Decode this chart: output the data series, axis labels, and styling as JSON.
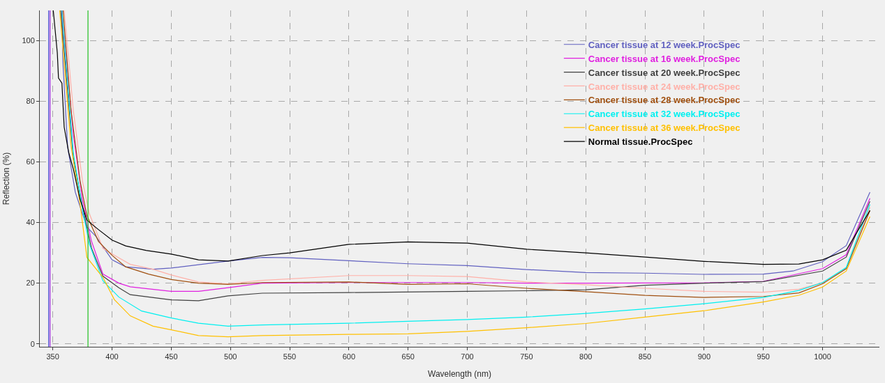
{
  "chart_data": {
    "type": "line",
    "xlabel": "Wavelength (nm)",
    "ylabel": "Reflection (%)",
    "xlim": [
      339,
      1048
    ],
    "xticks": [
      350,
      400,
      450,
      500,
      550,
      600,
      650,
      700,
      750,
      800,
      850,
      900,
      950,
      1000
    ],
    "ylim": [
      -1,
      110
    ],
    "yticks": [
      0,
      20,
      40,
      60,
      80,
      100
    ],
    "grid": true,
    "legend": "top right",
    "marker": "none",
    "line_style": "solid",
    "ref_lines": [
      {
        "axis": "x",
        "value": 346.5,
        "color": "#4040d0"
      },
      {
        "axis": "x",
        "value": 347.7,
        "color": "#a030e0"
      },
      {
        "axis": "x",
        "value": 379.7,
        "color": "#20c020"
      }
    ],
    "series": [
      {
        "name": "Cancer tissue at 12 week.ProcSpec",
        "color": "#6060c0",
        "x": [
          357.7,
          358.5,
          362.5,
          369,
          378.8,
          386.5,
          400,
          411.5,
          434.6,
          450,
          498,
          527,
          550,
          600,
          650,
          700,
          750,
          800,
          850,
          900,
          950,
          975,
          1000,
          1020,
          1040
        ],
        "values": [
          110,
          93,
          65,
          50,
          38.5,
          35.4,
          27.7,
          25.4,
          24.6,
          25,
          27.3,
          28.5,
          28.4,
          27.4,
          26.4,
          25.8,
          24.5,
          23.5,
          23.3,
          22.9,
          23,
          24,
          27.1,
          32.4,
          50
        ]
      },
      {
        "name": "Cancer tissue at 16 week.ProcSpec",
        "color": "#e020e0",
        "x": [
          357.7,
          367.3,
          375,
          382.7,
          392.3,
          405.8,
          415.4,
          450,
          473,
          498,
          527,
          600,
          700,
          750,
          800,
          900,
          950,
          1000,
          1020,
          1040
        ],
        "values": [
          110,
          69,
          47.7,
          33.8,
          23,
          20,
          18.8,
          17.3,
          17.3,
          18.5,
          20,
          20.2,
          20.2,
          20,
          20,
          20.1,
          20.6,
          24.8,
          29.4,
          48
        ]
      },
      {
        "name": "Cancer tissue at 20 week.ProcSpec",
        "color": "#404040",
        "x": [
          356.7,
          367.3,
          375,
          382.7,
          392.3,
          405.8,
          415.4,
          450,
          473,
          498,
          527,
          600,
          700,
          750,
          800,
          850,
          900,
          950,
          1000,
          1020,
          1040
        ],
        "values": [
          110,
          61.5,
          45.4,
          31.5,
          22.3,
          18.5,
          16.2,
          14.5,
          14.2,
          15.8,
          16.7,
          16.9,
          17.3,
          17.5,
          17.8,
          19.3,
          20,
          20.5,
          24,
          28.6,
          47
        ]
      },
      {
        "name": "Cancer tissue at 24 week.ProcSpec",
        "color": "#ffb0a8",
        "x": [
          359.6,
          367.3,
          375,
          380.8,
          392.3,
          401.9,
          415.4,
          434.6,
          450,
          473,
          498,
          527,
          600,
          650,
          700,
          750,
          800,
          850,
          900,
          950,
          980,
          1000,
          1020,
          1040
        ],
        "values": [
          110,
          77,
          53.8,
          43,
          31.5,
          29.2,
          26.2,
          24.6,
          22.7,
          20.4,
          19.8,
          20.9,
          22.5,
          22.5,
          22.2,
          20.4,
          19.5,
          18.3,
          17.3,
          17,
          18,
          20.2,
          24.8,
          45
        ]
      },
      {
        "name": "Cancer tissue at 28 week.ProcSpec",
        "color": "#a05010",
        "x": [
          358.7,
          365.4,
          373,
          378.8,
          388.5,
          400,
          411.5,
          430.8,
          450,
          473,
          498,
          527,
          600,
          650,
          700,
          750,
          800,
          850,
          900,
          950,
          980,
          1000,
          1020,
          1040
        ],
        "values": [
          110,
          77,
          53.8,
          42.3,
          33.8,
          29.2,
          25.4,
          23,
          21.2,
          20,
          19.6,
          20.2,
          20.4,
          19.6,
          19.8,
          18.3,
          17.2,
          16,
          15.3,
          15.6,
          16.8,
          19.8,
          24.8,
          44
        ]
      },
      {
        "name": "Cancer tissue at 32 week.ProcSpec",
        "color": "#00f0f0",
        "x": [
          357.7,
          367.3,
          375,
          380.8,
          392.3,
          405.8,
          425,
          450,
          473,
          498,
          527,
          600,
          650,
          700,
          750,
          800,
          850,
          900,
          950,
          980,
          1000,
          1020,
          1040
        ],
        "values": [
          110,
          63,
          44.6,
          33,
          20.8,
          15.4,
          10.8,
          8.5,
          6.8,
          5.8,
          6.2,
          6.8,
          7.4,
          8,
          8.8,
          10,
          11.5,
          13.2,
          15.3,
          17.6,
          20.2,
          25.2,
          46
        ]
      },
      {
        "name": "Cancer tissue at 36 week.ProcSpec",
        "color": "#ffc000",
        "x": [
          355.8,
          365.4,
          373,
          378.8,
          392.3,
          401.9,
          415.4,
          434.6,
          450,
          473,
          498,
          527,
          600,
          650,
          700,
          750,
          800,
          850,
          900,
          950,
          980,
          1000,
          1020,
          1040
        ],
        "values": [
          110,
          65.4,
          46.2,
          28.5,
          21.9,
          14.6,
          9.2,
          5.8,
          4.6,
          2.7,
          2.3,
          2.7,
          3.1,
          3.3,
          4.1,
          5.3,
          6.7,
          8.8,
          10.9,
          13.8,
          16,
          18.7,
          24,
          42
        ]
      },
      {
        "name": "Normal tissue.ProcSpec",
        "color": "#000000",
        "x": [
          350.4,
          353.8,
          354.8,
          357.7,
          359.6,
          363.5,
          367.3,
          373,
          378.8,
          388.5,
          400,
          411.5,
          428.8,
          450,
          473,
          498,
          527,
          550,
          600,
          650,
          700,
          750,
          800,
          850,
          900,
          950,
          980,
          1000,
          1020,
          1040
        ],
        "values": [
          110,
          96,
          87.7,
          86,
          71.5,
          63,
          57.7,
          47.7,
          40.8,
          37.7,
          34.2,
          32.3,
          30.8,
          29.6,
          27.7,
          27.3,
          29.1,
          30,
          32.8,
          33.6,
          33.2,
          31.2,
          30,
          28.6,
          27.2,
          26.2,
          26.3,
          27.7,
          30.9,
          44
        ]
      }
    ]
  }
}
